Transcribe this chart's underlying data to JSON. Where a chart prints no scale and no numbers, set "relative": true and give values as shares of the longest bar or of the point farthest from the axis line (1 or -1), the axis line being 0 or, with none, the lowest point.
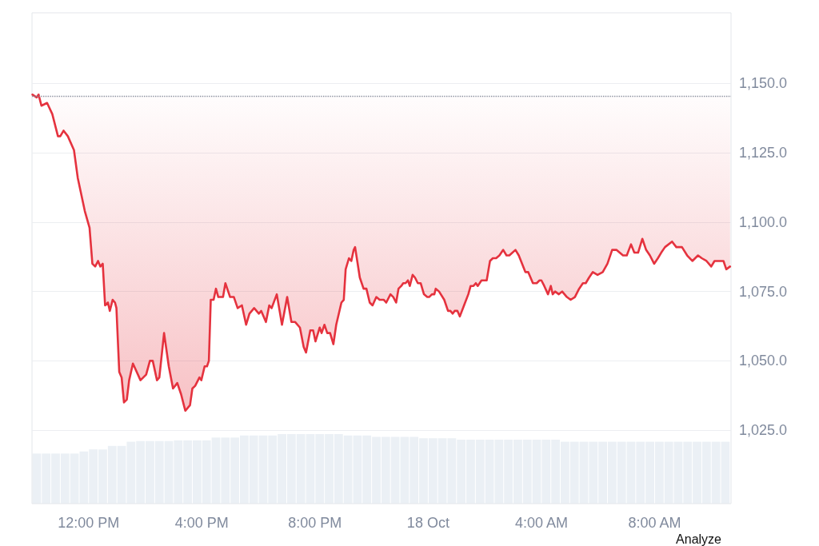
{
  "chart_data": [
    {
      "type": "line",
      "xlim": [
        "--10-17T10:00",
        "--10-18T10:42"
      ],
      "ylim": [
        998.5,
        1175.5
      ],
      "yticks": [
        {
          "value": 1025,
          "label": "1,025.0"
        },
        {
          "value": 1050,
          "label": "1,050.0"
        },
        {
          "value": 1075,
          "label": "1,075.0"
        },
        {
          "value": 1100,
          "label": "1,100.0"
        },
        {
          "value": 1125,
          "label": "1,125.0"
        },
        {
          "value": 1150,
          "label": "1,150.0"
        }
      ],
      "grid": "y",
      "tick_labels": "y",
      "marker": "none",
      "line_style": "solid",
      "ref_lines": [
        {
          "axis": "y",
          "value": 1145.5,
          "color": "#8a919e",
          "line_style": "dotted"
        }
      ],
      "series": [
        {
          "color": "#e5323e",
          "x": [
            "--10-17T10:01",
            "--10-17T10:10",
            "--10-17T10:14",
            "--10-17T10:20",
            "--10-17T10:32",
            "--10-17T10:43",
            "--10-17T10:55",
            "--10-17T11:00",
            "--10-17T11:07",
            "--10-17T11:16",
            "--10-17T11:29",
            "--10-17T11:37",
            "--10-17T11:52",
            "--10-17T12:02",
            "--10-17T12:08",
            "--10-17T12:14",
            "--10-17T12:20",
            "--10-17T12:25",
            "--10-17T12:30",
            "--10-17T12:35",
            "--10-17T12:41",
            "--10-17T12:45",
            "--10-17T12:51",
            "--10-17T12:56",
            "--10-17T12:59",
            "--10-17T13:05",
            "--10-17T13:10",
            "--10-17T13:15",
            "--10-17T13:21",
            "--10-17T13:26",
            "--10-17T13:34",
            "--10-17T13:50",
            "--10-17T14:02",
            "--10-17T14:10",
            "--10-17T14:16",
            "--10-17T14:25",
            "--10-17T14:30",
            "--10-17T14:40",
            "--10-17T14:50",
            "--10-17T14:59",
            "--10-17T15:08",
            "--10-17T15:16",
            "--10-17T15:25",
            "--10-17T15:35",
            "--10-17T15:40",
            "--10-17T15:46",
            "--10-17T15:55",
            "--10-17T15:59",
            "--10-17T16:06",
            "--10-17T16:11",
            "--10-17T16:15",
            "--10-17T16:19",
            "--10-17T16:25",
            "--10-17T16:30",
            "--10-17T16:35",
            "--10-17T16:45",
            "--10-17T16:50",
            "--10-17T17:00",
            "--10-17T17:08",
            "--10-17T17:16",
            "--10-17T17:25",
            "--10-17T17:34",
            "--10-17T17:41",
            "--10-17T17:51",
            "--10-17T18:01",
            "--10-17T18:06",
            "--10-17T18:16",
            "--10-17T18:23",
            "--10-17T18:28",
            "--10-17T18:39",
            "--10-17T18:50",
            "--10-17T19:01",
            "--10-17T19:10",
            "--10-17T19:18",
            "--10-17T19:28",
            "--10-17T19:36",
            "--10-17T19:41",
            "--10-17T19:50",
            "--10-17T19:56",
            "--10-17T20:01",
            "--10-17T20:10",
            "--10-17T20:14",
            "--10-17T20:20",
            "--10-17T20:26",
            "--10-17T20:32",
            "--10-17T20:39",
            "--10-17T20:45",
            "--10-17T20:56",
            "--10-17T21:01",
            "--10-17T21:05",
            "--10-17T21:12",
            "--10-17T21:17",
            "--10-17T21:22",
            "--10-17T21:25",
            "--10-17T21:35",
            "--10-17T21:43",
            "--10-17T21:49",
            "--10-17T21:56",
            "--10-17T22:02",
            "--10-17T22:10",
            "--10-17T22:17",
            "--10-17T22:26",
            "--10-17T22:31",
            "--10-17T22:40",
            "--10-17T22:46",
            "--10-17T22:52",
            "--10-17T22:57",
            "--10-17T23:03",
            "--10-17T23:07",
            "--10-17T23:12",
            "--10-17T23:17",
            "--10-17T23:21",
            "--10-17T23:27",
            "--10-17T23:32",
            "--10-17T23:38",
            "--10-17T23:44",
            "--10-17T23:51",
            "--10-17T23:58",
            "--10-18T00:02",
            "--10-18T00:08",
            "--10-18T00:13",
            "--10-18T00:16",
            "--10-18T00:23",
            "--10-18T00:34",
            "--10-18T00:42",
            "--10-18T00:47",
            "--10-18T00:52",
            "--10-18T00:56",
            "--10-18T01:02",
            "--10-18T01:07",
            "--10-18T01:16",
            "--10-18T01:25",
            "--10-18T01:30",
            "--10-18T01:36",
            "--10-18T01:41",
            "--10-18T01:45",
            "--10-18T01:53",
            "--10-18T01:58",
            "--10-18T02:04",
            "--10-18T02:11",
            "--10-18T02:17",
            "--10-18T02:24",
            "--10-18T02:31",
            "--10-18T02:39",
            "--10-18T02:46",
            "--10-18T02:52",
            "--10-18T03:05",
            "--10-18T03:12",
            "--10-18T03:26",
            "--10-18T03:32",
            "--10-18T03:42",
            "--10-18T03:50",
            "--10-18T03:56",
            "--10-18T04:00",
            "--10-18T04:06",
            "--10-18T04:14",
            "--10-18T04:20",
            "--10-18T04:24",
            "--10-18T04:29",
            "--10-18T04:37",
            "--10-18T04:44",
            "--10-18T04:54",
            "--10-18T05:02",
            "--10-18T05:11",
            "--10-18T05:20",
            "--10-18T05:28",
            "--10-18T05:34",
            "--10-18T05:41",
            "--10-18T05:49",
            "--10-18T05:59",
            "--10-18T06:10",
            "--10-18T06:20",
            "--10-18T06:30",
            "--10-18T06:39",
            "--10-18T06:53",
            "--10-18T07:01",
            "--10-18T07:10",
            "--10-18T07:17",
            "--10-18T07:25",
            "--10-18T07:34",
            "--10-18T07:42",
            "--10-18T07:50",
            "--10-18T07:59",
            "--10-18T08:07",
            "--10-18T08:14",
            "--10-18T08:22",
            "--10-18T08:37",
            "--10-18T08:46",
            "--10-18T08:58",
            "--10-18T09:09",
            "--10-18T09:20",
            "--10-18T09:32",
            "--10-18T09:40",
            "--10-18T09:50",
            "--10-18T10:00",
            "--10-18T10:07",
            "--10-18T10:23",
            "--10-18T10:26",
            "--10-18T10:32",
            "--10-18T10:40"
          ],
          "values": [
            1146,
            1145,
            1146,
            1142,
            1143,
            1139,
            1131,
            1131,
            1133,
            1131,
            1126,
            1116,
            1104,
            1098,
            1085,
            1084,
            1086,
            1084,
            1085,
            1070,
            1071,
            1068,
            1072,
            1071,
            1069,
            1046,
            1044,
            1035,
            1036,
            1043,
            1049,
            1043,
            1045,
            1050,
            1050,
            1043,
            1044,
            1060,
            1048,
            1040,
            1042,
            1038,
            1032,
            1034,
            1040,
            1041,
            1044,
            1043,
            1048,
            1048,
            1050,
            1072,
            1072,
            1076,
            1073,
            1073,
            1078,
            1073,
            1073,
            1069,
            1070,
            1063,
            1067,
            1069,
            1067,
            1068,
            1064,
            1070,
            1069,
            1074,
            1063,
            1073,
            1064,
            1064,
            1062,
            1055,
            1053,
            1061,
            1061,
            1057,
            1062,
            1060,
            1063,
            1060,
            1060,
            1056,
            1063,
            1071,
            1072,
            1083,
            1087,
            1086,
            1090,
            1091,
            1080,
            1076,
            1076,
            1071,
            1070,
            1073,
            1072,
            1072,
            1071,
            1074,
            1073,
            1071,
            1076,
            1077,
            1078,
            1078,
            1079,
            1077,
            1081,
            1080,
            1078,
            1078,
            1074,
            1073,
            1073,
            1074,
            1074,
            1076,
            1075,
            1072,
            1068,
            1068,
            1067,
            1068,
            1068,
            1066,
            1070,
            1074,
            1077,
            1077,
            1078,
            1077,
            1079,
            1079,
            1079,
            1086,
            1087,
            1087,
            1088,
            1090,
            1088,
            1088,
            1090,
            1088,
            1082,
            1082,
            1078,
            1078,
            1079,
            1079,
            1077,
            1074,
            1077,
            1074,
            1075,
            1074,
            1075,
            1073,
            1072,
            1073,
            1076,
            1078,
            1078,
            1080,
            1082,
            1081,
            1082,
            1085,
            1090,
            1090,
            1088,
            1088,
            1092,
            1089,
            1089,
            1094,
            1090,
            1088,
            1085,
            1087,
            1089,
            1091,
            1093,
            1091,
            1091,
            1088,
            1086,
            1088,
            1087,
            1086,
            1084,
            1086,
            1086,
            1086,
            1083,
            1084
          ],
          "lower": [
            1146,
            1145,
            1146,
            1142,
            1143,
            1139,
            1131,
            1131,
            1133,
            1131,
            1126,
            1116,
            1104,
            1098,
            1085,
            1084,
            1086,
            1084,
            1085,
            1070,
            1071,
            1068,
            1072,
            1071,
            1069,
            1046,
            1044,
            1035,
            1036,
            1043,
            1049,
            1043,
            1045,
            1050,
            1050,
            1043,
            1044,
            1060,
            1048,
            1040,
            1042,
            1038,
            1032,
            1034,
            1040,
            1041,
            1044,
            1043,
            1048,
            1048,
            1050,
            1072,
            1072,
            1076,
            1073,
            1073,
            1078,
            1073,
            1073,
            1069,
            1070,
            1063,
            1067,
            1069,
            1067,
            1068,
            1064,
            1070,
            1069,
            1074,
            1063,
            1073,
            1064,
            1064,
            1062,
            1055,
            1053,
            1061,
            1061,
            1057,
            1062,
            1060,
            1063,
            1060,
            1060,
            1056,
            1063,
            1071,
            1072,
            1083,
            1087,
            1086,
            1090,
            1091,
            1080,
            1076,
            1076,
            1071,
            1070,
            1073,
            1072,
            1072,
            1071,
            1074,
            1073,
            1071,
            1076,
            1077,
            1078,
            1078,
            1079,
            1077,
            1081,
            1080,
            1078,
            1078,
            1074,
            1073,
            1073,
            1074,
            1074,
            1076,
            1075,
            1072,
            1068,
            1068,
            1067,
            1068,
            1068,
            1066,
            1070,
            1074,
            1077,
            1077,
            1078,
            1077,
            1079,
            1079,
            1079,
            1086,
            1087,
            1087,
            1088,
            1090,
            1088,
            1088,
            1090,
            1088,
            1082,
            1082,
            1078,
            1078,
            1079,
            1079,
            1077,
            1074,
            1077,
            1074,
            1075,
            1074,
            1075,
            1073,
            1072,
            1073,
            1076,
            1078,
            1078,
            1080,
            1082,
            1081,
            1082,
            1085,
            1090,
            1090,
            1088,
            1088,
            1092,
            1089,
            1089,
            1094,
            1090,
            1088,
            1085,
            1087,
            1089,
            1091,
            1093,
            1091,
            1091,
            1088,
            1086,
            1088,
            1087,
            1086,
            1084,
            1086,
            1086,
            1086,
            1083,
            1084
          ],
          "upper": [
            1145.5,
            1145.5,
            1145.5,
            1145.5,
            1145.5,
            1145.5,
            1145.5,
            1145.5,
            1145.5,
            1145.5,
            1145.5,
            1145.5,
            1145.5,
            1145.5,
            1145.5,
            1145.5,
            1145.5,
            1145.5,
            1145.5,
            1145.5,
            1145.5,
            1145.5,
            1145.5,
            1145.5,
            1145.5,
            1145.5,
            1145.5,
            1145.5,
            1145.5,
            1145.5,
            1145.5,
            1145.5,
            1145.5,
            1145.5,
            1145.5,
            1145.5,
            1145.5,
            1145.5,
            1145.5,
            1145.5,
            1145.5,
            1145.5,
            1145.5,
            1145.5,
            1145.5,
            1145.5,
            1145.5,
            1145.5,
            1145.5,
            1145.5,
            1145.5,
            1145.5,
            1145.5,
            1145.5,
            1145.5,
            1145.5,
            1145.5,
            1145.5,
            1145.5,
            1145.5,
            1145.5,
            1145.5,
            1145.5,
            1145.5,
            1145.5,
            1145.5,
            1145.5,
            1145.5,
            1145.5,
            1145.5,
            1145.5,
            1145.5,
            1145.5,
            1145.5,
            1145.5,
            1145.5,
            1145.5,
            1145.5,
            1145.5,
            1145.5,
            1145.5,
            1145.5,
            1145.5,
            1145.5,
            1145.5,
            1145.5,
            1145.5,
            1145.5,
            1145.5,
            1145.5,
            1145.5,
            1145.5,
            1145.5,
            1145.5,
            1145.5,
            1145.5,
            1145.5,
            1145.5,
            1145.5,
            1145.5,
            1145.5,
            1145.5,
            1145.5,
            1145.5,
            1145.5,
            1145.5,
            1145.5,
            1145.5,
            1145.5,
            1145.5,
            1145.5,
            1145.5,
            1145.5,
            1145.5,
            1145.5,
            1145.5,
            1145.5,
            1145.5,
            1145.5,
            1145.5,
            1145.5,
            1145.5,
            1145.5,
            1145.5,
            1145.5,
            1145.5,
            1145.5,
            1145.5,
            1145.5,
            1145.5,
            1145.5,
            1145.5,
            1145.5,
            1145.5,
            1145.5,
            1145.5,
            1145.5,
            1145.5,
            1145.5,
            1145.5,
            1145.5,
            1145.5,
            1145.5,
            1145.5,
            1145.5,
            1145.5,
            1145.5,
            1145.5,
            1145.5,
            1145.5,
            1145.5,
            1145.5,
            1145.5,
            1145.5,
            1145.5,
            1145.5,
            1145.5,
            1145.5,
            1145.5,
            1145.5,
            1145.5,
            1145.5,
            1145.5,
            1145.5,
            1145.5,
            1145.5,
            1145.5,
            1145.5,
            1145.5,
            1145.5,
            1145.5,
            1145.5,
            1145.5,
            1145.5,
            1145.5,
            1145.5,
            1145.5,
            1145.5,
            1145.5,
            1145.5,
            1145.5,
            1145.5,
            1145.5,
            1145.5,
            1145.5,
            1145.5,
            1145.5,
            1145.5,
            1145.5,
            1145.5,
            1145.5,
            1145.5,
            1145.5,
            1145.5,
            1145.5,
            1145.5,
            1145.5,
            1145.5,
            1145.5,
            1145.5
          ]
        }
      ]
    },
    {
      "type": "bar",
      "relative": true,
      "color": "#ebf0f5",
      "xlim": [
        "--10-17T10:00",
        "--10-18T10:42"
      ],
      "xticks": [
        {
          "value": "--10-17T12:00",
          "label": "12:00 PM"
        },
        {
          "value": "--10-17T16:00",
          "label": "4:00 PM"
        },
        {
          "value": "--10-17T20:00",
          "label": "8:00 PM"
        },
        {
          "value": "--10-18T00:00",
          "label": "18 Oct"
        },
        {
          "value": "--10-18T04:00",
          "label": "4:00 AM"
        },
        {
          "value": "--10-18T08:00",
          "label": "8:00 AM"
        }
      ],
      "tick_labels": "x",
      "annotations": [
        "Analyze"
      ],
      "x": [
        "--10-17T10:10",
        "--10-17T10:30",
        "--10-17T10:50",
        "--10-17T11:10",
        "--10-17T11:30",
        "--10-17T11:50",
        "--10-17T12:10",
        "--10-17T12:30",
        "--10-17T12:50",
        "--10-17T13:10",
        "--10-17T13:30",
        "--10-17T13:50",
        "--10-17T14:10",
        "--10-17T14:30",
        "--10-17T14:50",
        "--10-17T15:10",
        "--10-17T15:30",
        "--10-17T15:50",
        "--10-17T16:10",
        "--10-17T16:30",
        "--10-17T16:50",
        "--10-17T17:10",
        "--10-17T17:30",
        "--10-17T17:50",
        "--10-17T18:10",
        "--10-17T18:30",
        "--10-17T18:50",
        "--10-17T19:10",
        "--10-17T19:30",
        "--10-17T19:50",
        "--10-17T20:10",
        "--10-17T20:30",
        "--10-17T20:50",
        "--10-17T21:10",
        "--10-17T21:30",
        "--10-17T21:50",
        "--10-17T22:10",
        "--10-17T22:30",
        "--10-17T22:50",
        "--10-17T23:10",
        "--10-17T23:30",
        "--10-17T23:50",
        "--10-18T00:10",
        "--10-18T00:30",
        "--10-18T00:50",
        "--10-18T01:10",
        "--10-18T01:30",
        "--10-18T01:50",
        "--10-18T02:10",
        "--10-18T02:30",
        "--10-18T02:50",
        "--10-18T03:10",
        "--10-18T03:30",
        "--10-18T03:50",
        "--10-18T04:10",
        "--10-18T04:30",
        "--10-18T04:50",
        "--10-18T05:10",
        "--10-18T05:30",
        "--10-18T05:50",
        "--10-18T06:10",
        "--10-18T06:30",
        "--10-18T06:50",
        "--10-18T07:10",
        "--10-18T07:30",
        "--10-18T07:50",
        "--10-18T08:10",
        "--10-18T08:30",
        "--10-18T08:50",
        "--10-18T09:10",
        "--10-18T09:30",
        "--10-18T09:50",
        "--10-18T10:10",
        "--10-18T10:30"
      ],
      "values": [
        0.72,
        0.72,
        0.72,
        0.72,
        0.72,
        0.75,
        0.78,
        0.78,
        0.83,
        0.83,
        0.89,
        0.9,
        0.9,
        0.9,
        0.9,
        0.91,
        0.91,
        0.91,
        0.91,
        0.95,
        0.95,
        0.95,
        0.98,
        0.98,
        0.98,
        0.98,
        1,
        1,
        1,
        1,
        1,
        1,
        1,
        0.98,
        0.98,
        0.98,
        0.96,
        0.96,
        0.96,
        0.96,
        0.96,
        0.94,
        0.94,
        0.94,
        0.94,
        0.92,
        0.92,
        0.92,
        0.92,
        0.92,
        0.92,
        0.92,
        0.92,
        0.92,
        0.92,
        0.92,
        0.89,
        0.89,
        0.89,
        0.89,
        0.89,
        0.89,
        0.89,
        0.89,
        0.89,
        0.89,
        0.89,
        0.89,
        0.89,
        0.89,
        0.89,
        0.89,
        0.89,
        0.89
      ]
    }
  ]
}
